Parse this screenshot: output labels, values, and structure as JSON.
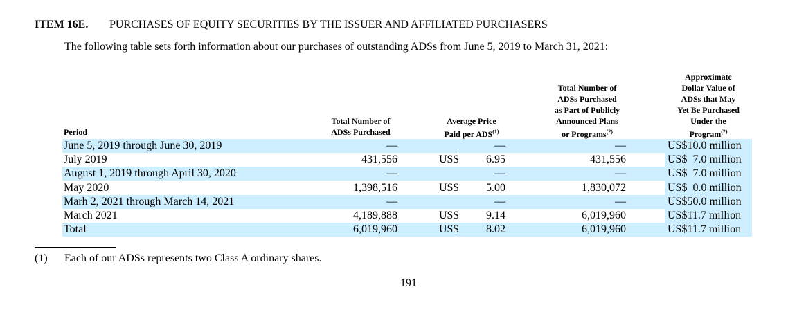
{
  "heading": {
    "item": "ITEM 16E.",
    "title": "PURCHASES OF EQUITY SECURITIES BY THE ISSUER AND AFFILIATED PURCHASERS"
  },
  "intro": "The following table sets forth information about our purchases of outstanding ADSs from June 5, 2019 to March 31, 2021:",
  "table": {
    "headers": [
      {
        "lines": [
          "Period"
        ]
      },
      {
        "lines": [
          "Total Number of",
          "ADSs Purchased"
        ]
      },
      {
        "lines": [
          "Average Price",
          "Paid per ADS"
        ],
        "note": "(1)"
      },
      {
        "lines": [
          "Total Number of",
          "ADSs Purchased",
          "as Part of Publicly",
          "Announced Plans",
          "or Programs"
        ],
        "note": "(2)"
      },
      {
        "lines": [
          "Approximate",
          "Dollar Value of",
          "ADSs that May",
          "Yet Be Purchased",
          "Under the",
          "Program"
        ],
        "note": "(2)"
      }
    ],
    "rows": [
      [
        "June 5, 2019 through June 30, 2019",
        "—",
        "",
        "—",
        "—",
        "US$10.0 million"
      ],
      [
        "July 2019",
        "431,556",
        "US$",
        "6.95",
        "431,556",
        "US$  7.0 million"
      ],
      [
        "August 1, 2019 through April 30, 2020",
        "—",
        "",
        "—",
        "—",
        "US$  7.0 million"
      ],
      [
        "May 2020",
        "1,398,516",
        "US$",
        "5.00",
        "1,830,072",
        "US$  0.0 million"
      ],
      [
        "Marh 2, 2021 through March 14, 2021",
        "—",
        "",
        "—",
        "—",
        "US$50.0 million"
      ],
      [
        "March 2021",
        "4,189,888",
        "US$",
        "9.14",
        "6,019,960",
        "US$11.7 million"
      ],
      [
        "Total",
        "6,019,960",
        "US$",
        "8.02",
        "6,019,960",
        "US$11.7 million"
      ]
    ]
  },
  "footnote": {
    "marker": "(1)",
    "text": "Each of our ADSs represents two Class A ordinary shares."
  },
  "page_number": "191"
}
